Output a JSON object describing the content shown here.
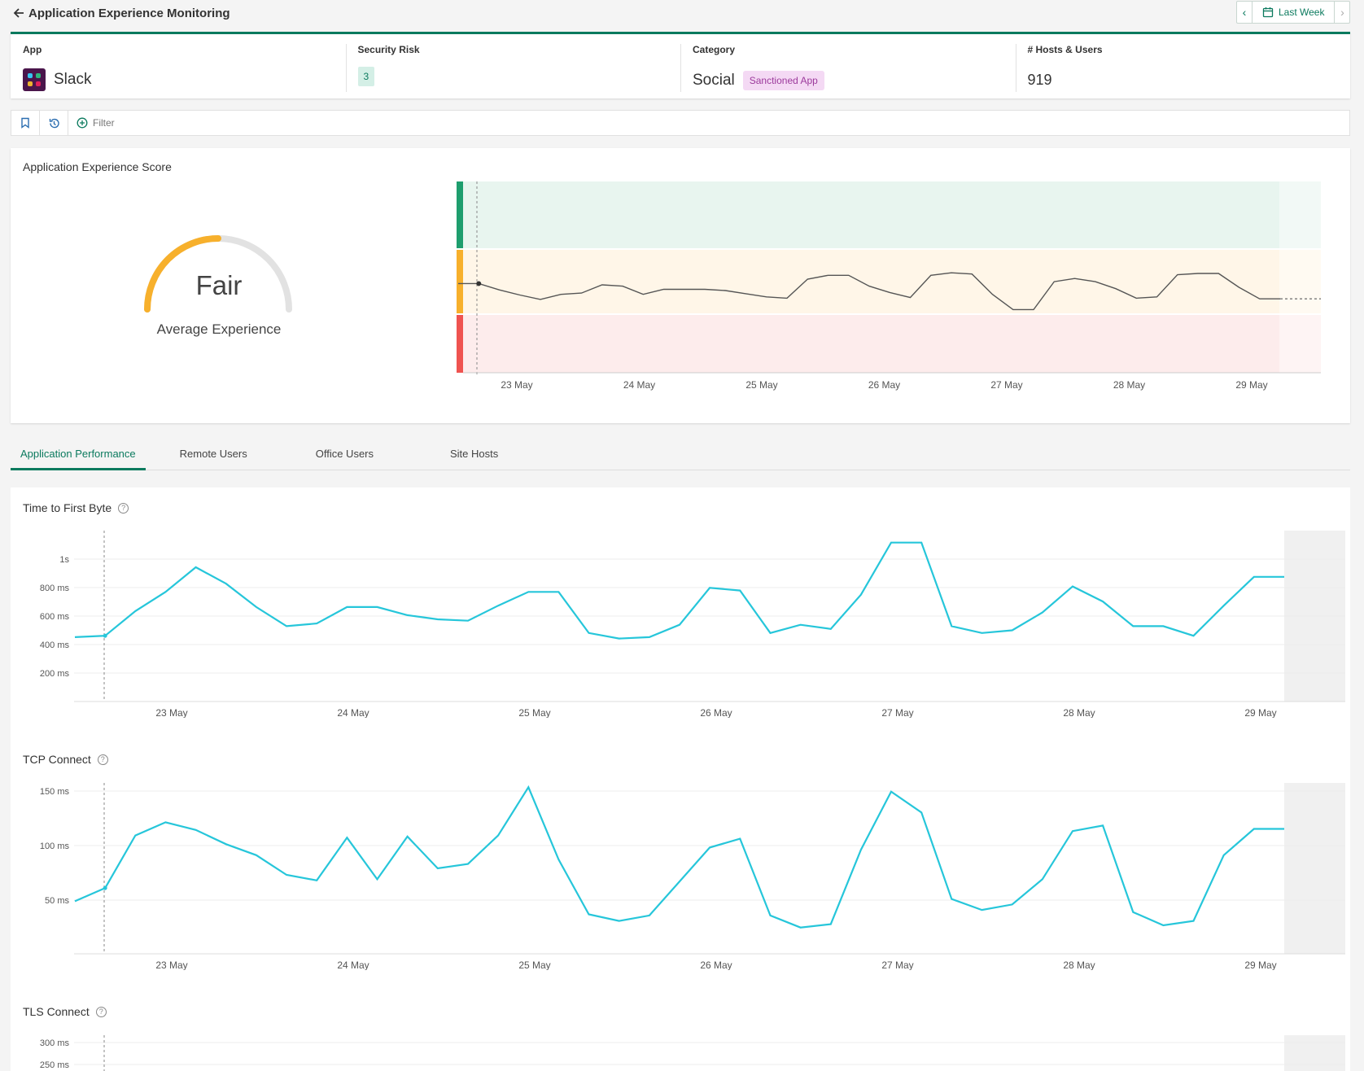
{
  "header": {
    "title": "Application Experience Monitoring",
    "period_label": "Last Week"
  },
  "summary": {
    "app_label": "App",
    "app_value": "Slack",
    "risk_label": "Security Risk",
    "risk_value": "3",
    "category_label": "Category",
    "category_value": "Social",
    "category_badge": "Sanctioned App",
    "hosts_label": "# Hosts & Users",
    "hosts_value": "919"
  },
  "filter": {
    "label": "Filter"
  },
  "score_card": {
    "title": "Application Experience Score",
    "gauge_value": "Fair",
    "gauge_caption": "Average Experience",
    "gauge_fraction": 0.5
  },
  "tabs": [
    {
      "label": "Application Performance",
      "active": true
    },
    {
      "label": "Remote Users",
      "active": false
    },
    {
      "label": "Office Users",
      "active": false
    },
    {
      "label": "Site Hosts",
      "active": false
    }
  ],
  "colors": {
    "accent": "#0b7a5e",
    "good": "#1e9e6e",
    "fair": "#f7b02c",
    "poor": "#ef5350",
    "series": "#26c6da"
  },
  "chart_data": [
    {
      "type": "line",
      "title": "Application Experience Score",
      "x_ticks": [
        "23 May",
        "24 May",
        "25 May",
        "26 May",
        "27 May",
        "28 May",
        "29 May"
      ],
      "bands": [
        "Good",
        "Fair",
        "Poor"
      ],
      "values": [
        52,
        52,
        42,
        34,
        27,
        35,
        37,
        50,
        48,
        35,
        43,
        43,
        43,
        41,
        36,
        31,
        29,
        59,
        65,
        65,
        48,
        38,
        30,
        65,
        69,
        67,
        35,
        11,
        11,
        55,
        60,
        55,
        44,
        29,
        31,
        66,
        68,
        68,
        46,
        28,
        28
      ]
    },
    {
      "type": "line",
      "title": "Time to First Byte",
      "y_ticks": [
        "1s",
        "800 ms",
        "600 ms",
        "400 ms",
        "200 ms"
      ],
      "x_ticks": [
        "23 May",
        "24 May",
        "25 May",
        "26 May",
        "27 May",
        "28 May",
        "29 May"
      ],
      "ylim": [
        0,
        1200
      ],
      "values": [
        470,
        480,
        660,
        800,
        980,
        860,
        690,
        550,
        570,
        690,
        690,
        630,
        600,
        590,
        700,
        800,
        800,
        500,
        460,
        470,
        560,
        830,
        810,
        500,
        560,
        530,
        780,
        1160,
        1160,
        550,
        500,
        520,
        650,
        840,
        730,
        550,
        550,
        480,
        700,
        910,
        910
      ]
    },
    {
      "type": "line",
      "title": "TCP Connect",
      "y_ticks": [
        "150 ms",
        "100 ms",
        "50 ms"
      ],
      "x_ticks": [
        "23 May",
        "24 May",
        "25 May",
        "26 May",
        "27 May",
        "28 May",
        "29 May"
      ],
      "ylim": [
        0,
        150
      ],
      "values": [
        48,
        60,
        108,
        120,
        113,
        100,
        90,
        72,
        67,
        106,
        68,
        107,
        78,
        82,
        108,
        152,
        86,
        36,
        30,
        35,
        66,
        97,
        105,
        35,
        24,
        27,
        95,
        148,
        129,
        50,
        40,
        45,
        68,
        112,
        117,
        38,
        26,
        30,
        90,
        114,
        114
      ]
    },
    {
      "type": "line",
      "title": "TLS Connect",
      "y_ticks": [
        "300 ms",
        "250 ms"
      ],
      "ylim": [
        0,
        300
      ]
    }
  ]
}
